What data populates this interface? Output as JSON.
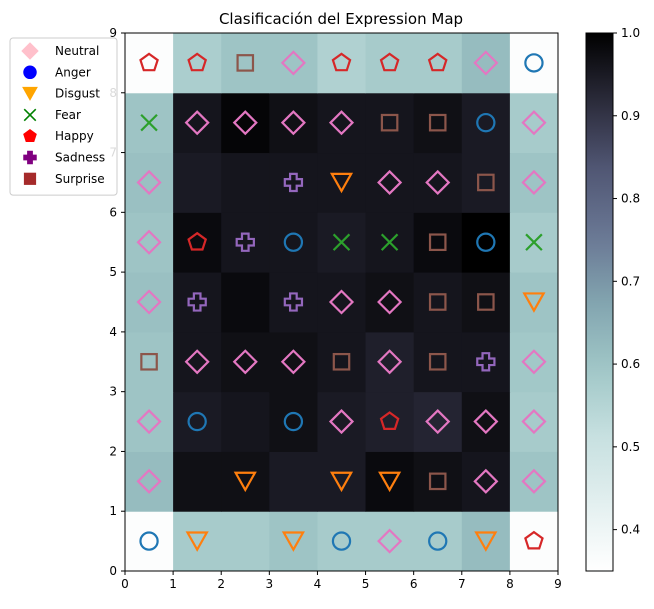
{
  "chart_data": {
    "type": "heatmap",
    "title": "Clasificación del Expression Map",
    "xlim": [
      0,
      9
    ],
    "ylim": [
      0,
      9
    ],
    "x_ticks": [
      "0",
      "1",
      "2",
      "3",
      "4",
      "5",
      "6",
      "7",
      "8",
      "9"
    ],
    "y_ticks": [
      "0",
      "1",
      "2",
      "3",
      "4",
      "5",
      "6",
      "7",
      "8",
      "9"
    ],
    "grid": false,
    "legend_position": "upper-left",
    "colormap": "bone_r",
    "colorbar": {
      "range": [
        0.35,
        1.0
      ],
      "ticks": [
        "0.4",
        "0.5",
        "0.6",
        "0.7",
        "0.8",
        "0.9",
        "1.0"
      ],
      "tick_values": [
        0.4,
        0.5,
        0.6,
        0.7,
        0.8,
        0.9,
        1.0
      ]
    },
    "legend": [
      {
        "label": "Neutral",
        "marker": "diamond-filled",
        "color": "#ffc0cb"
      },
      {
        "label": "Anger",
        "marker": "circle-filled",
        "color": "#0000ff"
      },
      {
        "label": "Disgust",
        "marker": "triangle-down-filled",
        "color": "#ffa500"
      },
      {
        "label": "Fear",
        "marker": "x",
        "color": "#008000"
      },
      {
        "label": "Happy",
        "marker": "pentagon-filled",
        "color": "#ff0000"
      },
      {
        "label": "Sadness",
        "marker": "plus-filled",
        "color": "#800080"
      },
      {
        "label": "Surprise",
        "marker": "square-filled",
        "color": "#a52a2a"
      }
    ],
    "marker_colors": {
      "Neutral": "#e377c2",
      "Anger": "#1f77b4",
      "Disgust": "#ff7f0e",
      "Fear": "#2ca02c",
      "Happy": "#d62728",
      "Sadness": "#9467bd",
      "Surprise": "#8c564b"
    },
    "cell_values": [
      [
        0.36,
        0.58,
        0.58,
        0.6,
        0.58,
        0.58,
        0.58,
        0.62,
        0.36
      ],
      [
        0.62,
        0.97,
        0.97,
        0.95,
        0.95,
        0.98,
        0.97,
        0.96,
        0.6
      ],
      [
        0.6,
        0.95,
        0.96,
        0.97,
        0.95,
        0.94,
        0.93,
        0.97,
        0.58
      ],
      [
        0.6,
        0.96,
        0.97,
        0.97,
        0.96,
        0.94,
        0.96,
        0.96,
        0.59
      ],
      [
        0.61,
        0.96,
        0.98,
        0.96,
        0.96,
        0.97,
        0.96,
        0.97,
        0.6
      ],
      [
        0.6,
        0.98,
        0.96,
        0.96,
        0.95,
        0.96,
        0.98,
        1.0,
        0.58
      ],
      [
        0.61,
        0.95,
        0.96,
        0.96,
        0.96,
        0.96,
        0.96,
        0.95,
        0.6
      ],
      [
        0.6,
        0.96,
        0.99,
        0.97,
        0.96,
        0.96,
        0.97,
        0.95,
        0.58
      ],
      [
        0.36,
        0.57,
        0.6,
        0.6,
        0.56,
        0.58,
        0.58,
        0.62,
        0.36
      ]
    ],
    "cell_labels": [
      [
        "Anger",
        "Disgust",
        "",
        "Disgust",
        "Anger",
        "Neutral",
        "Anger",
        "Disgust",
        "Happy"
      ],
      [
        "Neutral",
        "",
        "Disgust",
        "",
        "Disgust",
        "Disgust",
        "Surprise",
        "Neutral",
        "Neutral"
      ],
      [
        "Neutral",
        "Anger",
        "",
        "Anger",
        "Neutral",
        "Happy",
        "Neutral",
        "Neutral",
        "Neutral"
      ],
      [
        "Surprise",
        "Neutral",
        "Neutral",
        "Neutral",
        "Surprise",
        "Neutral",
        "Surprise",
        "Sadness",
        "Neutral"
      ],
      [
        "Neutral",
        "Sadness",
        "",
        "Sadness",
        "Neutral",
        "Neutral",
        "Surprise",
        "Surprise",
        "Disgust"
      ],
      [
        "Neutral",
        "Happy",
        "Sadness",
        "Anger",
        "Fear",
        "Fear",
        "Surprise",
        "Anger",
        "Fear"
      ],
      [
        "Neutral",
        "",
        "",
        "Sadness",
        "Disgust",
        "Neutral",
        "Neutral",
        "Surprise",
        "Neutral"
      ],
      [
        "Fear",
        "Neutral",
        "Neutral",
        "Neutral",
        "Neutral",
        "Surprise",
        "Surprise",
        "Anger",
        "Neutral"
      ],
      [
        "Happy",
        "Happy",
        "Surprise",
        "Neutral",
        "Happy",
        "Happy",
        "Happy",
        "Neutral",
        "Anger"
      ]
    ]
  }
}
